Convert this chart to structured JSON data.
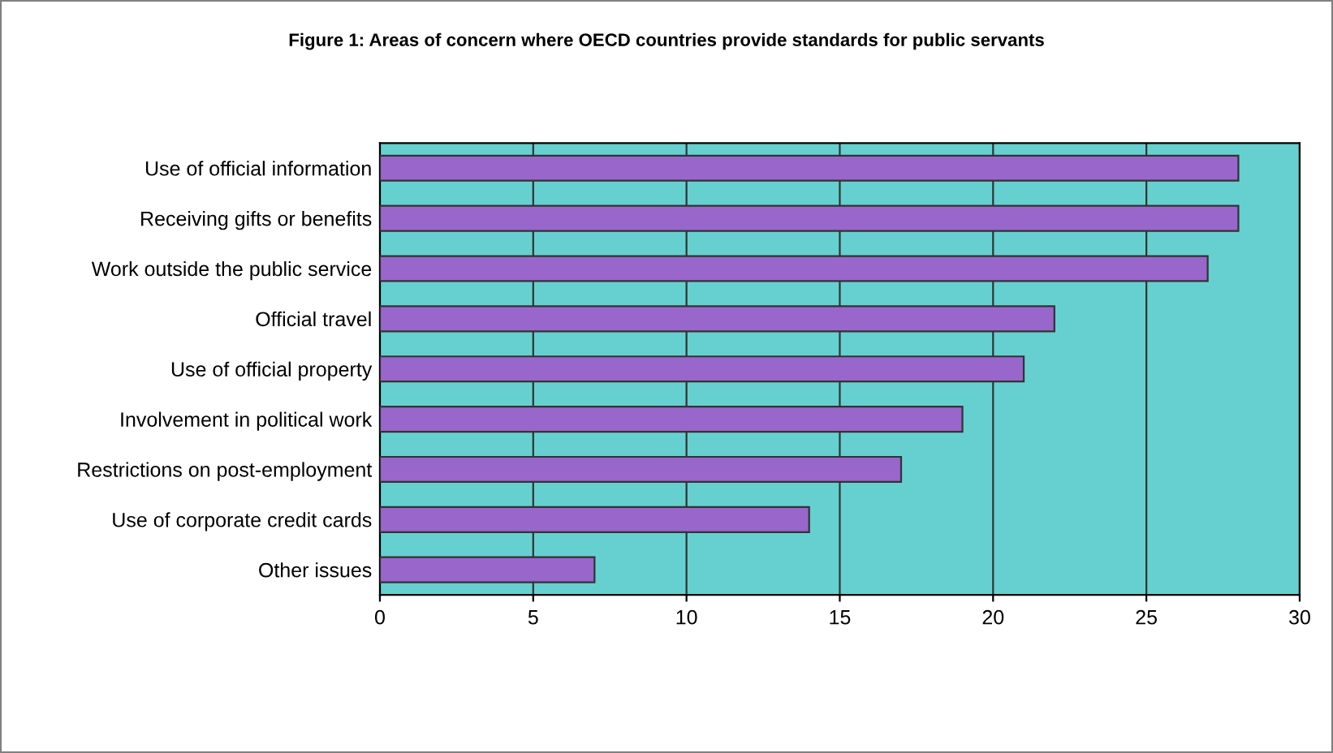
{
  "chart_data": {
    "type": "bar",
    "orientation": "horizontal",
    "title": "Figure 1: Areas of concern where OECD countries provide standards for public servants",
    "categories": [
      "Use of official information",
      "Receiving gifts or benefits",
      "Work outside the public service",
      "Official travel",
      "Use of official property",
      "Involvement in political work",
      "Restrictions on post-employment",
      "Use of corporate credit cards",
      "Other issues"
    ],
    "values": [
      28,
      28,
      27,
      22,
      21,
      19,
      17,
      14,
      7
    ],
    "color": "#9966cc",
    "xlim": [
      0,
      30
    ],
    "xticks": [
      0,
      5,
      10,
      15,
      20,
      25,
      30
    ],
    "grid": "x"
  }
}
